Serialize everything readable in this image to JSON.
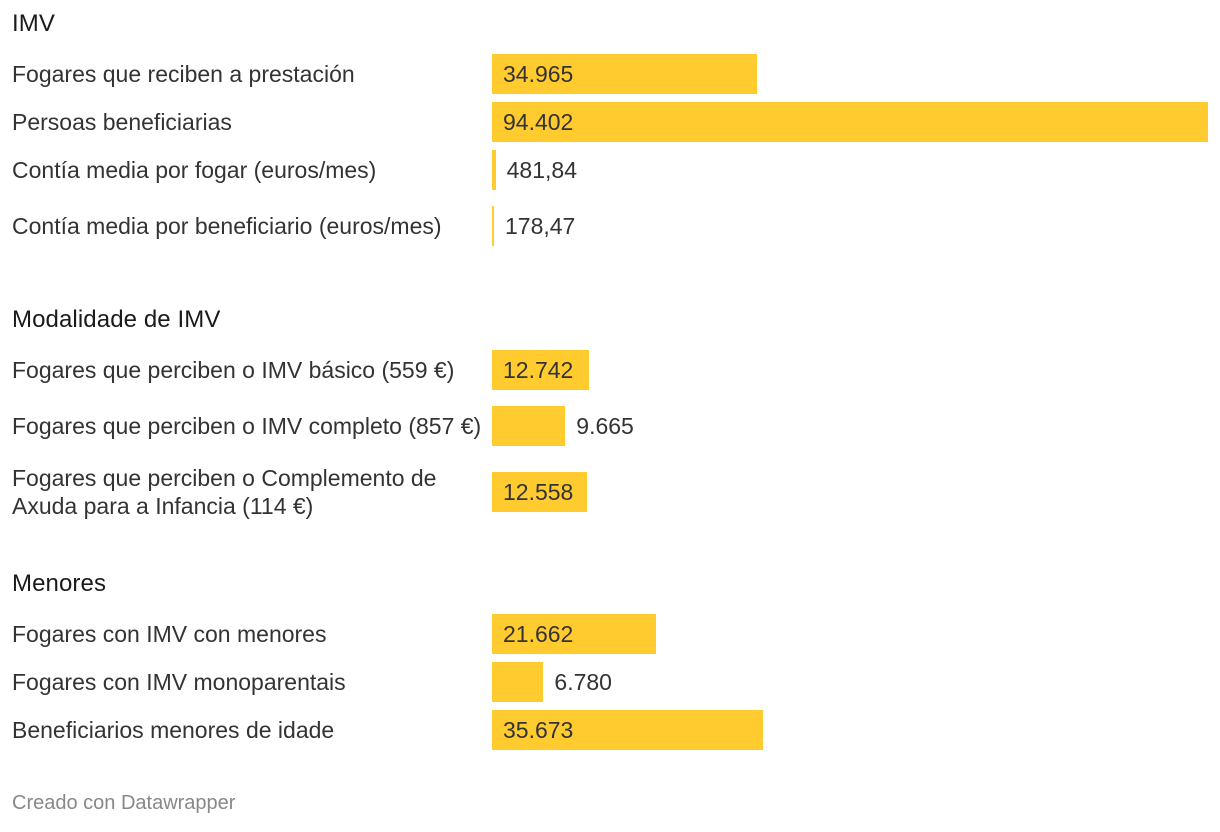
{
  "chart_data": {
    "type": "bar",
    "orientation": "horizontal",
    "max_value": 94402,
    "sections": [
      {
        "title": "IMV",
        "rows": [
          {
            "label": "Fogares que reciben a prestación",
            "value": 34965,
            "display": "34.965"
          },
          {
            "label": "Persoas beneficiarias",
            "value": 94402,
            "display": "94.402"
          },
          {
            "label": "Contía media por fogar (euros/mes)",
            "value": 481.84,
            "display": "481,84"
          },
          {
            "label": "Contía media por beneficiario (euros/mes)",
            "value": 178.47,
            "display": "178,47"
          }
        ]
      },
      {
        "title": "Modalidade de IMV",
        "rows": [
          {
            "label": "Fogares que perciben o IMV básico (559 €)",
            "value": 12742,
            "display": "12.742"
          },
          {
            "label": "Fogares que perciben o IMV completo (857 €)",
            "value": 9665,
            "display": "9.665"
          },
          {
            "label": "Fogares que perciben o Complemento de Axuda para a Infancia (114 €)",
            "value": 12558,
            "display": "12.558"
          }
        ]
      },
      {
        "title": "Menores",
        "rows": [
          {
            "label": "Fogares con IMV con menores",
            "value": 21662,
            "display": "21.662"
          },
          {
            "label": "Fogares con IMV monoparentais",
            "value": 6780,
            "display": "6.780"
          },
          {
            "label": "Beneficiarios menores de idade",
            "value": 35673,
            "display": "35.673"
          }
        ]
      }
    ],
    "colors": {
      "bar": "#ffcb2f"
    }
  },
  "footer": {
    "credit": "Creado con Datawrapper"
  }
}
